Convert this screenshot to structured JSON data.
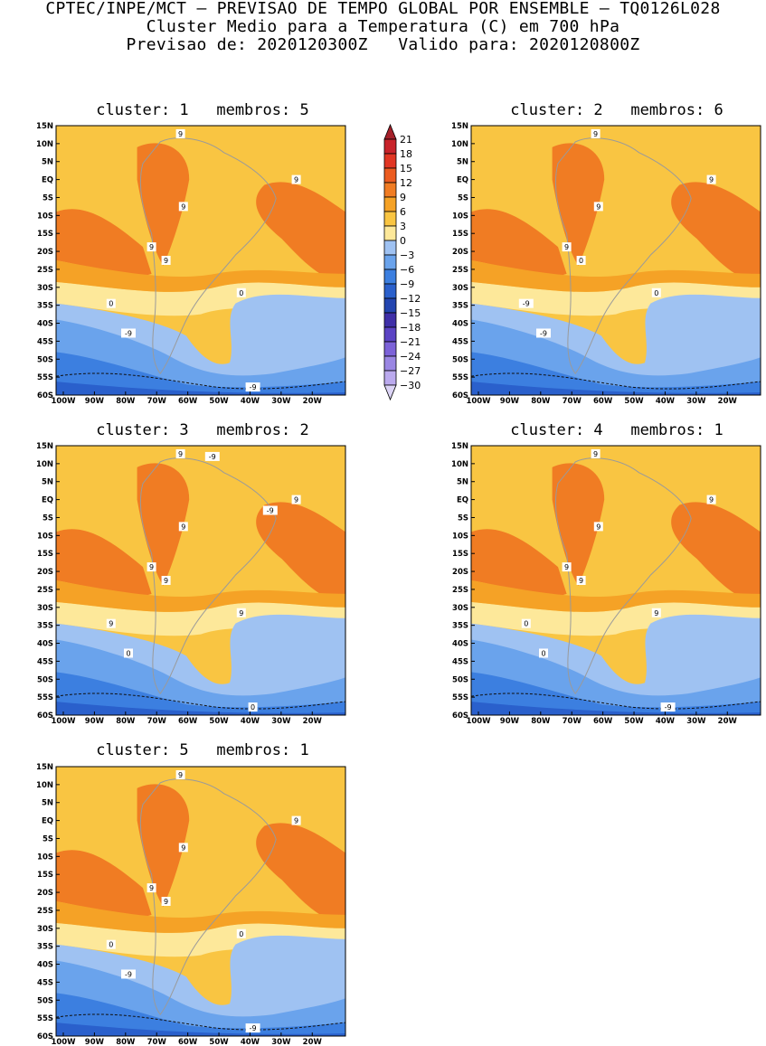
{
  "header": {
    "line1": "CPTEC/INPE/MCT – PREVISAO DE TEMPO GLOBAL POR ENSEMBLE – TQ0126L028",
    "line2": "Cluster Medio para a Temperatura (C) em 700 hPa",
    "line3": "Previsao de: 2020120300Z   Valido para: 2020120800Z"
  },
  "axes": {
    "lat_labels": [
      "15N",
      "10N",
      "5N",
      "EQ",
      "5S",
      "10S",
      "15S",
      "20S",
      "25S",
      "30S",
      "35S",
      "40S",
      "45S",
      "50S",
      "55S",
      "60S"
    ],
    "lon_labels": [
      "100W",
      "90W",
      "80W",
      "70W",
      "60W",
      "50W",
      "40W",
      "30W",
      "20W"
    ]
  },
  "colorbar": {
    "labels": [
      "21",
      "18",
      "15",
      "12",
      "9",
      "6",
      "3",
      "0",
      "-3",
      "-6",
      "-9",
      "-12",
      "-15",
      "-18",
      "-21",
      "-24",
      "-27",
      "-30"
    ],
    "colors": [
      "#a5202a",
      "#c8232a",
      "#e13623",
      "#ec5c20",
      "#f07c23",
      "#f5a226",
      "#f9c542",
      "#fde89a",
      "#9fc2f2",
      "#6aa3ec",
      "#3c7fe0",
      "#2a60cc",
      "#2345b0",
      "#3f2fa8",
      "#5b43c4",
      "#7c62d8",
      "#9a86e3",
      "#bbaaee",
      "#dcd4f6"
    ]
  },
  "panels": [
    {
      "title": "cluster: 1   membros: 5",
      "contour_labels": [
        "9",
        "9",
        "9",
        "9",
        "9",
        "0",
        "0",
        "-9",
        "-9"
      ]
    },
    {
      "title": "cluster: 2   membros: 6",
      "contour_labels": [
        "9",
        "9",
        "9",
        "9",
        "0",
        "0",
        "-9",
        "-9"
      ]
    },
    {
      "title": "cluster: 3   membros: 2",
      "contour_labels": [
        "9",
        "9",
        "9",
        "9",
        "9",
        "9",
        "9",
        "0",
        "0",
        "-9",
        "-9"
      ]
    },
    {
      "title": "cluster: 4   membros: 1",
      "contour_labels": [
        "9",
        "9",
        "9",
        "9",
        "9",
        "9",
        "0",
        "0",
        "-9"
      ]
    },
    {
      "title": "cluster: 5   membros: 1",
      "contour_labels": [
        "9",
        "9",
        "9",
        "9",
        "9",
        "0",
        "0",
        "-9",
        "-9"
      ]
    }
  ]
}
